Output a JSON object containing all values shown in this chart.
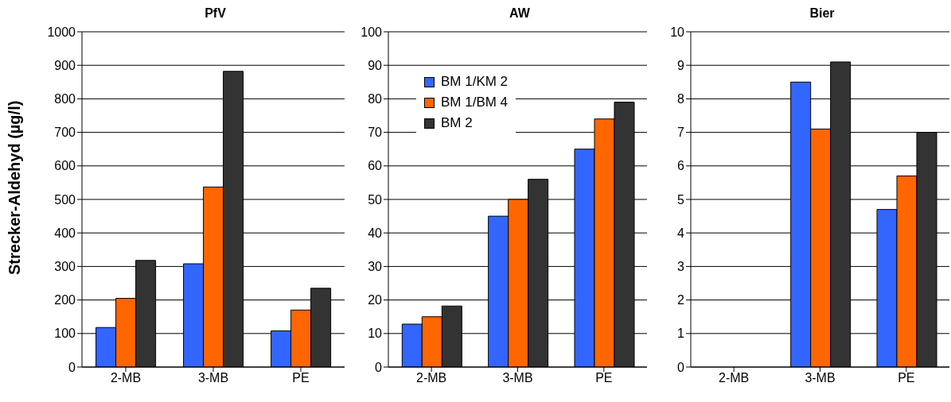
{
  "chart_data": [
    {
      "type": "bar",
      "title": "PfV",
      "ylabel": "Strecker-Aldehyd (µg/l)",
      "categories": [
        "2-MB",
        "3-MB",
        "PE"
      ],
      "series": [
        {
          "color": "#3366ff",
          "values": [
            118,
            308,
            108
          ]
        },
        {
          "color": "#ff6600",
          "values": [
            205,
            537,
            170
          ]
        },
        {
          "color": "#333333",
          "values": [
            318,
            882,
            235
          ]
        }
      ],
      "ylim": [
        0,
        1000
      ],
      "yticks": [
        0,
        100,
        200,
        300,
        400,
        500,
        600,
        700,
        800,
        900,
        1000
      ],
      "grid": "y"
    },
    {
      "type": "bar",
      "title": "AW",
      "categories": [
        "2-MB",
        "3-MB",
        "PE"
      ],
      "series": [
        {
          "name": "BM 1/KM 2",
          "color": "#3366ff",
          "values": [
            12.8,
            45,
            65
          ]
        },
        {
          "name": "BM 1/BM 4",
          "color": "#ff6600",
          "values": [
            15,
            50,
            74
          ]
        },
        {
          "name": "BM 2",
          "color": "#333333",
          "values": [
            18.2,
            56,
            79
          ]
        }
      ],
      "ylim": [
        0,
        100
      ],
      "yticks": [
        0,
        10,
        20,
        30,
        40,
        50,
        60,
        70,
        80,
        90,
        100
      ],
      "grid": "y",
      "legend": "top left"
    },
    {
      "type": "bar",
      "title": "Bier",
      "categories": [
        "2-MB",
        "3-MB",
        "PE"
      ],
      "series": [
        {
          "color": "#3366ff",
          "values": [
            null,
            8.5,
            4.7
          ]
        },
        {
          "color": "#ff6600",
          "values": [
            null,
            7.1,
            5.7
          ]
        },
        {
          "color": "#333333",
          "values": [
            null,
            9.1,
            7.0
          ]
        }
      ],
      "ylim": [
        0,
        10
      ],
      "yticks": [
        0,
        1,
        2,
        3,
        4,
        5,
        6,
        7,
        8,
        9,
        10
      ],
      "grid": "y"
    }
  ]
}
